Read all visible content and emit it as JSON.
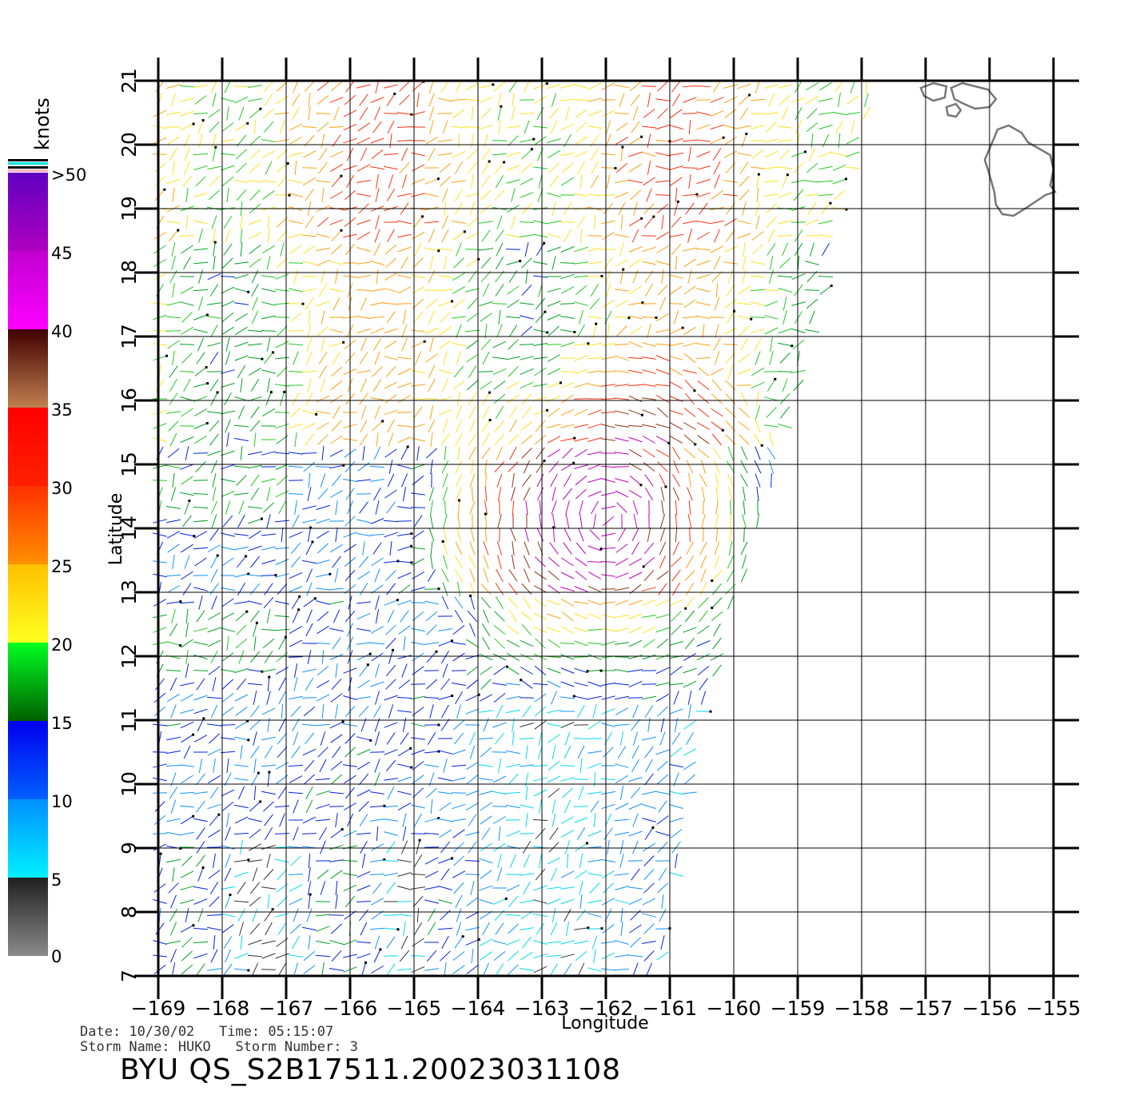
{
  "map": {
    "lon_ticks": [
      "-169",
      "-168",
      "-167",
      "-166",
      "-165",
      "-164",
      "-163",
      "-162",
      "-161",
      "-160",
      "-159",
      "-158",
      "-157",
      "-156",
      "-155"
    ],
    "lat_ticks": [
      "7",
      "8",
      "9",
      "10",
      "11",
      "12",
      "13",
      "14",
      "15",
      "16",
      "17",
      "18",
      "19",
      "20",
      "21"
    ],
    "lon_range": [
      -169,
      -155
    ],
    "lat_range": [
      7,
      21
    ],
    "x_label": "Longitude",
    "y_label": "Latitude",
    "land_color": "#777777",
    "grid_color": "#000000"
  },
  "colorbar": {
    "title": "knots",
    "labels": [
      "0",
      "5",
      "10",
      "15",
      "20",
      "25",
      "30",
      "35",
      "40",
      "45",
      ">50"
    ],
    "segments": [
      {
        "from": 0,
        "to": 5,
        "colors": [
          "#8a8a8a",
          "#202020"
        ]
      },
      {
        "from": 5,
        "to": 10,
        "colors": [
          "#00f0ff",
          "#0090ff"
        ]
      },
      {
        "from": 10,
        "to": 15,
        "colors": [
          "#0060ff",
          "#0000f0"
        ]
      },
      {
        "from": 15,
        "to": 20,
        "colors": [
          "#006000",
          "#00ff20"
        ]
      },
      {
        "from": 20,
        "to": 25,
        "colors": [
          "#ffff20",
          "#ffc000"
        ]
      },
      {
        "from": 25,
        "to": 30,
        "colors": [
          "#ff9000",
          "#ff3000"
        ]
      },
      {
        "from": 30,
        "to": 35,
        "colors": [
          "#ff2000",
          "#ff0000"
        ]
      },
      {
        "from": 35,
        "to": 40,
        "colors": [
          "#c08050",
          "#400000"
        ]
      },
      {
        "from": 40,
        "to": 45,
        "colors": [
          "#ff00ff",
          "#c000d0"
        ]
      },
      {
        "from": 45,
        "to": 50,
        "colors": [
          "#b000c0",
          "#6000c0"
        ]
      }
    ]
  },
  "info": {
    "date_line": "Date: 10/30/02   Time: 05:15:07",
    "storm_line": "Storm Name: HUKO   Storm Number: 3",
    "title": "BYU QS_S2B17511.20023031108"
  }
}
